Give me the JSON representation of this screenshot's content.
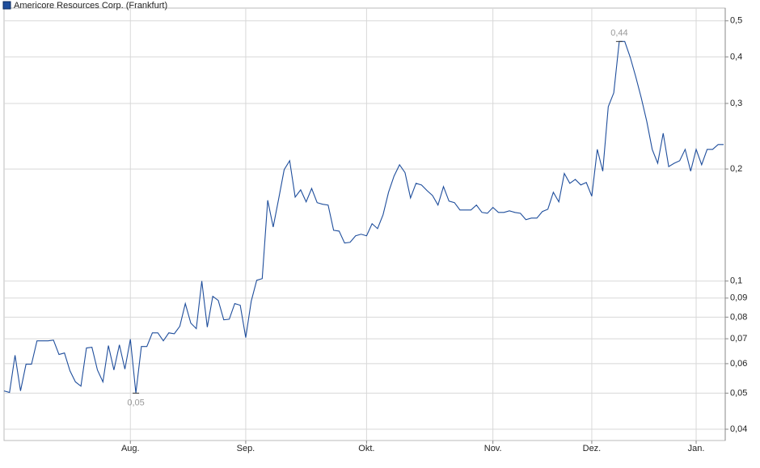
{
  "chart_data": {
    "type": "line",
    "legend": "top-left",
    "grid": true,
    "log_scale": true,
    "series": [
      {
        "name": "Americore Resources Corp. (Frankfurt)",
        "color": "#1f4e9c",
        "values": [
          0.0507,
          0.0502,
          0.0632,
          0.0507,
          0.0598,
          0.0598,
          0.0691,
          0.0691,
          0.0691,
          0.0694,
          0.0635,
          0.0641,
          0.0574,
          0.0536,
          0.0522,
          0.0661,
          0.0664,
          0.0577,
          0.0536,
          0.0671,
          0.0577,
          0.0674,
          0.058,
          0.0698,
          0.05,
          0.0667,
          0.0667,
          0.0726,
          0.0726,
          0.0691,
          0.0726,
          0.0722,
          0.0756,
          0.087,
          0.0771,
          0.0745,
          0.1,
          0.0752,
          0.091,
          0.0887,
          0.0787,
          0.079,
          0.087,
          0.0861,
          0.0705,
          0.0883,
          0.1005,
          0.1015,
          0.1648,
          0.1397,
          0.1664,
          0.1992,
          0.2105,
          0.1681,
          0.1758,
          0.1632,
          0.1773,
          0.1624,
          0.1608,
          0.16,
          0.1369,
          0.1362,
          0.1265,
          0.1271,
          0.1323,
          0.1336,
          0.1323,
          0.1426,
          0.1383,
          0.1507,
          0.1732,
          0.1914,
          0.2053,
          0.1955,
          0.1672,
          0.183,
          0.1812,
          0.175,
          0.1698,
          0.16,
          0.1794,
          0.164,
          0.1624,
          0.1552,
          0.1552,
          0.1552,
          0.16,
          0.1529,
          0.1521,
          0.1577,
          0.1529,
          0.1529,
          0.1544,
          0.1529,
          0.1521,
          0.1462,
          0.1476,
          0.1476,
          0.1537,
          0.1559,
          0.1732,
          0.1632,
          0.1945,
          0.183,
          0.1875,
          0.1812,
          0.184,
          0.169,
          0.2258,
          0.1973,
          0.294,
          0.3202,
          0.44,
          0.44,
          0.399,
          0.3539,
          0.3108,
          0.2688,
          0.2258,
          0.2072,
          0.2495,
          0.203,
          0.2072,
          0.2105,
          0.2258,
          0.1973,
          0.2258,
          0.2053,
          0.2258,
          0.2258,
          0.2326,
          0.2326
        ],
        "value_labels": [
          null,
          null,
          null,
          null,
          null,
          null,
          null,
          null,
          null,
          null,
          null,
          null,
          null,
          null,
          null,
          null,
          null,
          null,
          null,
          null,
          null,
          null,
          null,
          null,
          "0,05",
          null,
          null,
          null,
          null,
          null,
          null,
          null,
          null,
          null,
          null,
          null,
          null,
          null,
          null,
          null,
          null,
          null,
          null,
          null,
          null,
          null,
          null,
          null,
          null,
          null,
          null,
          null,
          null,
          null,
          null,
          null,
          null,
          null,
          null,
          null,
          null,
          null,
          null,
          null,
          null,
          null,
          null,
          null,
          null,
          null,
          null,
          null,
          null,
          null,
          null,
          null,
          null,
          null,
          null,
          null,
          null,
          null,
          null,
          null,
          null,
          null,
          null,
          null,
          null,
          null,
          null,
          null,
          null,
          null,
          null,
          null,
          null,
          null,
          null,
          null,
          null,
          null,
          null,
          null,
          null,
          null,
          null,
          null,
          null,
          null,
          null,
          null,
          "0,44",
          null,
          null,
          null,
          null,
          null,
          null,
          null,
          null,
          null,
          null,
          null,
          null,
          null,
          null,
          null,
          null,
          null,
          null,
          null
        ]
      }
    ],
    "xlim": [
      0,
      131
    ],
    "xticks": [
      {
        "value": 23,
        "label": "Aug."
      },
      {
        "value": 44,
        "label": "Sep."
      },
      {
        "value": 66,
        "label": "Okt."
      },
      {
        "value": 89,
        "label": "Nov."
      },
      {
        "value": 107,
        "label": "Dez."
      },
      {
        "value": 126,
        "label": "Jan."
      }
    ],
    "ylim": [
      0.0373,
      0.541
    ],
    "yticks": [
      {
        "value": 0.5,
        "label": "0,5"
      },
      {
        "value": 0.4,
        "label": "0,4"
      },
      {
        "value": 0.3,
        "label": "0,3"
      },
      {
        "value": 0.2,
        "label": "0,2"
      },
      {
        "value": 0.1,
        "label": "0,1"
      },
      {
        "value": 0.09,
        "label": "0,09"
      },
      {
        "value": 0.08,
        "label": "0,08"
      },
      {
        "value": 0.07,
        "label": "0,07"
      },
      {
        "value": 0.06,
        "label": "0,06"
      },
      {
        "value": 0.05,
        "label": "0,05"
      },
      {
        "value": 0.04,
        "label": "0,04"
      }
    ]
  }
}
